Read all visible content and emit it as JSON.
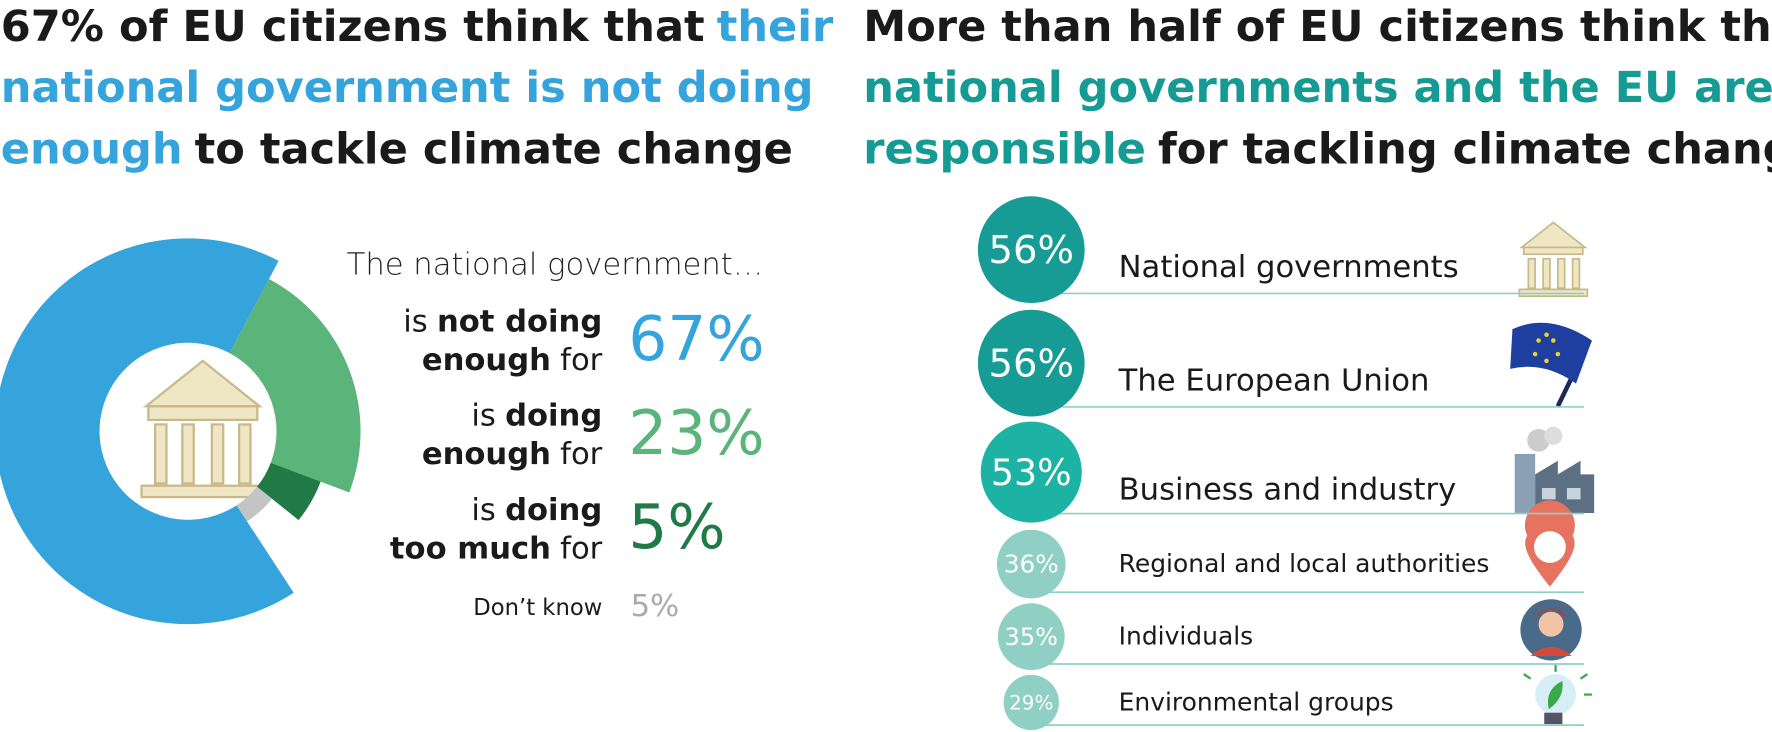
{
  "chart_data": [
    {
      "type": "donut",
      "title_lines": [
        [
          {
            "text": "67% of EU citizens think that",
            "color": "#1a1a1a"
          },
          {
            "text": "their",
            "color": "#35a4dc"
          }
        ],
        [
          {
            "text": "national government is not doing",
            "color": "#35a4dc"
          }
        ],
        [
          {
            "text": "enough",
            "color": "#35a4dc"
          },
          {
            "text": "to tackle climate change",
            "color": "#1a1a1a"
          }
        ]
      ],
      "subtitle": "The national government…",
      "categories": [
        [
          "is",
          "not doing",
          "enough",
          "for"
        ],
        [
          "is",
          "doing",
          "enough",
          "for"
        ],
        [
          "is",
          "doing",
          "too much",
          "for"
        ],
        [
          "Don’t know"
        ]
      ],
      "values": [
        67,
        23,
        5,
        5
      ],
      "value_labels": [
        "67%",
        "23%",
        "5%",
        "5%"
      ],
      "colors": [
        "#35a4dc",
        "#5bb47a",
        "#1f7a45",
        "#c4c4c4"
      ]
    },
    {
      "type": "bubble-list",
      "title_lines": [
        [
          {
            "text": "More than half of EU citizens think that",
            "color": "#1a1a1a"
          }
        ],
        [
          {
            "text": "national governments and the EU are",
            "color": "#159b93"
          }
        ],
        [
          {
            "text": "responsible",
            "color": "#159b93"
          },
          {
            "text": "for tackling climate change",
            "color": "#1a1a1a"
          }
        ]
      ],
      "categories": [
        "National governments",
        "The European Union",
        "Business and industry",
        "Regional and local authorities",
        "Individuals",
        "Environmental groups"
      ],
      "values": [
        56,
        56,
        53,
        36,
        35,
        29
      ],
      "value_labels": [
        "56%",
        "56%",
        "53%",
        "36%",
        "35%",
        "29%"
      ],
      "colors": [
        "#169c95",
        "#169c95",
        "#1db3a4",
        "#8fcfc4",
        "#8fcfc4",
        "#8fcfc4"
      ]
    }
  ]
}
